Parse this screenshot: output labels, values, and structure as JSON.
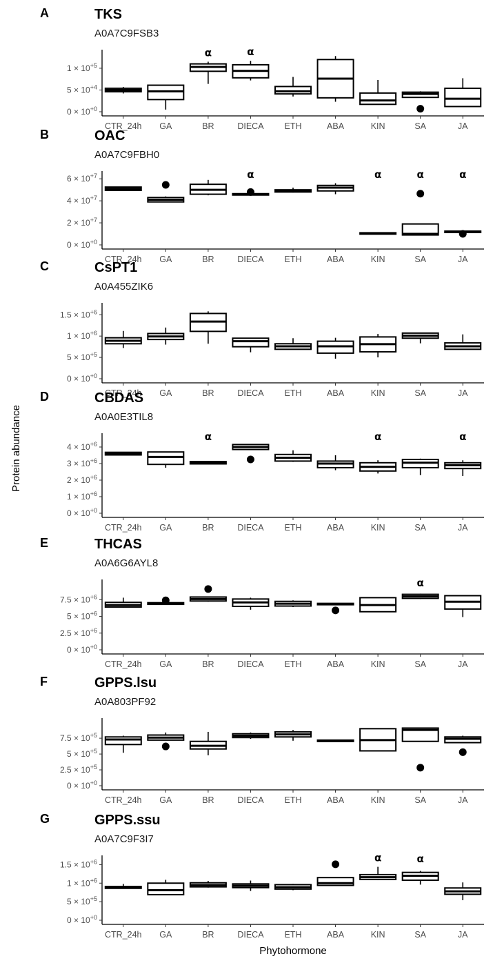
{
  "xlabel": "Phytohormone",
  "ylabel": "Protein abundance",
  "categories": [
    "CTR_24h",
    "GA",
    "BR",
    "DIECA",
    "ETH",
    "ABA",
    "KIN",
    "SA",
    "JA"
  ],
  "chart_data": [
    {
      "type": "boxplot",
      "letter": "A",
      "title": "TKS",
      "subtitle": "A0A7C9FSB3",
      "ylim": [
        0,
        130000
      ],
      "yticks": [
        {
          "v": 0,
          "m": "0",
          "e": "0"
        },
        {
          "v": 50000,
          "m": "5",
          "e": "4"
        },
        {
          "v": 100000,
          "m": "1",
          "e": "5"
        }
      ],
      "boxes": [
        {
          "category": "CTR_24h",
          "wmin": 42000,
          "q1": 46000,
          "median": 50000,
          "q3": 54000,
          "wmax": 57000,
          "outliers": [],
          "sig": ""
        },
        {
          "category": "GA",
          "wmin": 5000,
          "q1": 28000,
          "median": 47000,
          "q3": 61000,
          "wmax": 61000,
          "outliers": [],
          "sig": ""
        },
        {
          "category": "BR",
          "wmin": 64000,
          "q1": 93000,
          "median": 103000,
          "q3": 110000,
          "wmax": 115000,
          "outliers": [],
          "sig": "α"
        },
        {
          "category": "DIECA",
          "wmin": 72000,
          "q1": 78000,
          "median": 94000,
          "q3": 108000,
          "wmax": 117000,
          "outliers": [],
          "sig": "α"
        },
        {
          "category": "ETH",
          "wmin": 35000,
          "q1": 41000,
          "median": 47000,
          "q3": 58000,
          "wmax": 80000,
          "outliers": [],
          "sig": ""
        },
        {
          "category": "ABA",
          "wmin": 23000,
          "q1": 32000,
          "median": 76000,
          "q3": 120000,
          "wmax": 128000,
          "outliers": [],
          "sig": ""
        },
        {
          "category": "KIN",
          "wmin": 17000,
          "q1": 17000,
          "median": 26000,
          "q3": 43000,
          "wmax": 73000,
          "outliers": [],
          "sig": ""
        },
        {
          "category": "SA",
          "wmin": 33000,
          "q1": 33000,
          "median": 41000,
          "q3": 45000,
          "wmax": 47000,
          "outliers": [
            7000
          ],
          "sig": ""
        },
        {
          "category": "JA",
          "wmin": 12000,
          "q1": 12000,
          "median": 30000,
          "q3": 54000,
          "wmax": 77000,
          "outliers": [],
          "sig": ""
        }
      ]
    },
    {
      "type": "boxplot",
      "letter": "B",
      "title": "OAC",
      "subtitle": "A0A7C9FBH0",
      "ylim": [
        0,
        62000000
      ],
      "yticks": [
        {
          "v": 0,
          "m": "0",
          "e": "0"
        },
        {
          "v": 20000000,
          "m": "2",
          "e": "7"
        },
        {
          "v": 40000000,
          "m": "4",
          "e": "7"
        },
        {
          "v": 60000000,
          "m": "6",
          "e": "7"
        }
      ],
      "boxes": [
        {
          "category": "CTR_24h",
          "wmin": 49500000,
          "q1": 49500000,
          "median": 51000000,
          "q3": 52500000,
          "wmax": 52500000,
          "outliers": [],
          "sig": ""
        },
        {
          "category": "GA",
          "wmin": 39000000,
          "q1": 39000000,
          "median": 41000000,
          "q3": 43000000,
          "wmax": 44000000,
          "outliers": [
            54500000
          ],
          "sig": ""
        },
        {
          "category": "BR",
          "wmin": 45000000,
          "q1": 46000000,
          "median": 50000000,
          "q3": 55000000,
          "wmax": 59000000,
          "outliers": [],
          "sig": ""
        },
        {
          "category": "DIECA",
          "wmin": 45500000,
          "q1": 45500000,
          "median": 46000000,
          "q3": 46500000,
          "wmax": 46500000,
          "outliers": [
            48000000
          ],
          "sig": "α"
        },
        {
          "category": "ETH",
          "wmin": 47500000,
          "q1": 48000000,
          "median": 49000000,
          "q3": 50000000,
          "wmax": 52000000,
          "outliers": [],
          "sig": ""
        },
        {
          "category": "ABA",
          "wmin": 46000000,
          "q1": 49000000,
          "median": 52000000,
          "q3": 54000000,
          "wmax": 56000000,
          "outliers": [],
          "sig": ""
        },
        {
          "category": "KIN",
          "wmin": 10000000,
          "q1": 10000000,
          "median": 10500000,
          "q3": 11000000,
          "wmax": 11000000,
          "outliers": [],
          "sig": "α"
        },
        {
          "category": "SA",
          "wmin": 9000000,
          "q1": 9000000,
          "median": 10000000,
          "q3": 19000000,
          "wmax": 19000000,
          "outliers": [
            46500000
          ],
          "sig": "α"
        },
        {
          "category": "JA",
          "wmin": 11000000,
          "q1": 11500000,
          "median": 12000000,
          "q3": 12500000,
          "wmax": 12500000,
          "outliers": [
            10000000
          ],
          "sig": "α"
        }
      ]
    },
    {
      "type": "boxplot",
      "letter": "C",
      "title": "CsPT1",
      "subtitle": "A0A455ZIK6",
      "ylim": [
        0,
        1650000
      ],
      "yticks": [
        {
          "v": 0,
          "m": "0",
          "e": "0"
        },
        {
          "v": 500000,
          "m": "5",
          "e": "5"
        },
        {
          "v": 1000000,
          "m": "1",
          "e": "6"
        },
        {
          "v": 1500000,
          "m": "1.5",
          "e": "6"
        }
      ],
      "boxes": [
        {
          "category": "CTR_24h",
          "wmin": 720000,
          "q1": 820000,
          "median": 890000,
          "q3": 960000,
          "wmax": 1120000,
          "outliers": [],
          "sig": ""
        },
        {
          "category": "GA",
          "wmin": 800000,
          "q1": 920000,
          "median": 990000,
          "q3": 1060000,
          "wmax": 1200000,
          "outliers": [],
          "sig": ""
        },
        {
          "category": "BR",
          "wmin": 820000,
          "q1": 1110000,
          "median": 1340000,
          "q3": 1530000,
          "wmax": 1580000,
          "outliers": [],
          "sig": ""
        },
        {
          "category": "DIECA",
          "wmin": 620000,
          "q1": 750000,
          "median": 880000,
          "q3": 950000,
          "wmax": 950000,
          "outliers": [],
          "sig": ""
        },
        {
          "category": "ETH",
          "wmin": 680000,
          "q1": 690000,
          "median": 760000,
          "q3": 820000,
          "wmax": 950000,
          "outliers": [],
          "sig": ""
        },
        {
          "category": "ABA",
          "wmin": 470000,
          "q1": 600000,
          "median": 760000,
          "q3": 880000,
          "wmax": 960000,
          "outliers": [],
          "sig": ""
        },
        {
          "category": "KIN",
          "wmin": 500000,
          "q1": 630000,
          "median": 810000,
          "q3": 980000,
          "wmax": 1050000,
          "outliers": [],
          "sig": ""
        },
        {
          "category": "SA",
          "wmin": 830000,
          "q1": 950000,
          "median": 1010000,
          "q3": 1070000,
          "wmax": 1070000,
          "outliers": [],
          "sig": ""
        },
        {
          "category": "JA",
          "wmin": 680000,
          "q1": 690000,
          "median": 760000,
          "q3": 840000,
          "wmax": 1040000,
          "outliers": [],
          "sig": ""
        }
      ]
    },
    {
      "type": "boxplot",
      "letter": "D",
      "title": "CBDAS",
      "subtitle": "A0A0E3TIL8",
      "ylim": [
        0,
        4500000
      ],
      "yticks": [
        {
          "v": 0,
          "m": "0",
          "e": "0"
        },
        {
          "v": 1000000,
          "m": "1",
          "e": "6"
        },
        {
          "v": 2000000,
          "m": "2",
          "e": "6"
        },
        {
          "v": 3000000,
          "m": "3",
          "e": "6"
        },
        {
          "v": 4000000,
          "m": "4",
          "e": "6"
        }
      ],
      "boxes": [
        {
          "category": "CTR_24h",
          "wmin": 3500000,
          "q1": 3520000,
          "median": 3600000,
          "q3": 3680000,
          "wmax": 3700000,
          "outliers": [],
          "sig": ""
        },
        {
          "category": "GA",
          "wmin": 2750000,
          "q1": 2950000,
          "median": 3400000,
          "q3": 3700000,
          "wmax": 3700000,
          "outliers": [],
          "sig": ""
        },
        {
          "category": "BR",
          "wmin": 2950000,
          "q1": 2980000,
          "median": 3050000,
          "q3": 3120000,
          "wmax": 3150000,
          "outliers": [],
          "sig": "α"
        },
        {
          "category": "DIECA",
          "wmin": 3850000,
          "q1": 3850000,
          "median": 4000000,
          "q3": 4150000,
          "wmax": 4150000,
          "outliers": [
            3250000
          ],
          "sig": ""
        },
        {
          "category": "ETH",
          "wmin": 3100000,
          "q1": 3150000,
          "median": 3350000,
          "q3": 3550000,
          "wmax": 3800000,
          "outliers": [],
          "sig": ""
        },
        {
          "category": "ABA",
          "wmin": 2600000,
          "q1": 2750000,
          "median": 3000000,
          "q3": 3150000,
          "wmax": 3500000,
          "outliers": [],
          "sig": ""
        },
        {
          "category": "KIN",
          "wmin": 2400000,
          "q1": 2550000,
          "median": 2800000,
          "q3": 3050000,
          "wmax": 3200000,
          "outliers": [],
          "sig": "α"
        },
        {
          "category": "SA",
          "wmin": 2300000,
          "q1": 2750000,
          "median": 3050000,
          "q3": 3250000,
          "wmax": 3300000,
          "outliers": [],
          "sig": ""
        },
        {
          "category": "JA",
          "wmin": 2250000,
          "q1": 2700000,
          "median": 2900000,
          "q3": 3050000,
          "wmax": 3200000,
          "outliers": [],
          "sig": "α"
        }
      ]
    },
    {
      "type": "boxplot",
      "letter": "E",
      "title": "THCAS",
      "subtitle": "A0A6G6AYL8",
      "ylim": [
        0,
        9700000
      ],
      "yticks": [
        {
          "v": 0,
          "m": "0",
          "e": "0"
        },
        {
          "v": 2500000,
          "m": "2.5",
          "e": "6"
        },
        {
          "v": 5000000,
          "m": "5",
          "e": "6"
        },
        {
          "v": 7500000,
          "m": "7.5",
          "e": "6"
        }
      ],
      "boxes": [
        {
          "category": "CTR_24h",
          "wmin": 6300000,
          "q1": 6400000,
          "median": 6700000,
          "q3": 7100000,
          "wmax": 7800000,
          "outliers": [],
          "sig": ""
        },
        {
          "category": "GA",
          "wmin": 6800000,
          "q1": 6800000,
          "median": 6950000,
          "q3": 7050000,
          "wmax": 7050000,
          "outliers": [
            7400000
          ],
          "sig": ""
        },
        {
          "category": "BR",
          "wmin": 7200000,
          "q1": 7300000,
          "median": 7600000,
          "q3": 7900000,
          "wmax": 7900000,
          "outliers": [
            9100000
          ],
          "sig": ""
        },
        {
          "category": "DIECA",
          "wmin": 6000000,
          "q1": 6500000,
          "median": 7100000,
          "q3": 7600000,
          "wmax": 7800000,
          "outliers": [],
          "sig": ""
        },
        {
          "category": "ETH",
          "wmin": 6400000,
          "q1": 6550000,
          "median": 6900000,
          "q3": 7250000,
          "wmax": 7400000,
          "outliers": [],
          "sig": ""
        },
        {
          "category": "ABA",
          "wmin": 6750000,
          "q1": 6800000,
          "median": 6850000,
          "q3": 6950000,
          "wmax": 6950000,
          "outliers": [
            5900000
          ],
          "sig": ""
        },
        {
          "category": "KIN",
          "wmin": 5700000,
          "q1": 5700000,
          "median": 6700000,
          "q3": 7800000,
          "wmax": 7800000,
          "outliers": [],
          "sig": ""
        },
        {
          "category": "SA",
          "wmin": 7600000,
          "q1": 7700000,
          "median": 8000000,
          "q3": 8300000,
          "wmax": 8400000,
          "outliers": [],
          "sig": "α"
        },
        {
          "category": "JA",
          "wmin": 4900000,
          "q1": 6100000,
          "median": 7200000,
          "q3": 8100000,
          "wmax": 8100000,
          "outliers": [],
          "sig": ""
        }
      ]
    },
    {
      "type": "boxplot",
      "letter": "F",
      "title": "GPPS.lsu",
      "subtitle": "A0A803PF92",
      "ylim": [
        0,
        980000
      ],
      "yticks": [
        {
          "v": 0,
          "m": "0",
          "e": "0"
        },
        {
          "v": 250000,
          "m": "2.5",
          "e": "5"
        },
        {
          "v": 500000,
          "m": "5",
          "e": "5"
        },
        {
          "v": 750000,
          "m": "7.5",
          "e": "5"
        }
      ],
      "boxes": [
        {
          "category": "CTR_24h",
          "wmin": 520000,
          "q1": 650000,
          "median": 730000,
          "q3": 770000,
          "wmax": 790000,
          "outliers": [],
          "sig": ""
        },
        {
          "category": "GA",
          "wmin": 720000,
          "q1": 720000,
          "median": 760000,
          "q3": 800000,
          "wmax": 840000,
          "outliers": [
            620000
          ],
          "sig": ""
        },
        {
          "category": "BR",
          "wmin": 480000,
          "q1": 580000,
          "median": 630000,
          "q3": 700000,
          "wmax": 850000,
          "outliers": [],
          "sig": ""
        },
        {
          "category": "DIECA",
          "wmin": 740000,
          "q1": 760000,
          "median": 790000,
          "q3": 820000,
          "wmax": 840000,
          "outliers": [],
          "sig": ""
        },
        {
          "category": "ETH",
          "wmin": 710000,
          "q1": 770000,
          "median": 810000,
          "q3": 850000,
          "wmax": 880000,
          "outliers": [],
          "sig": ""
        },
        {
          "category": "ABA",
          "wmin": 705000,
          "q1": 705000,
          "median": 712000,
          "q3": 720000,
          "wmax": 720000,
          "outliers": [],
          "sig": ""
        },
        {
          "category": "KIN",
          "wmin": 550000,
          "q1": 550000,
          "median": 720000,
          "q3": 900000,
          "wmax": 900000,
          "outliers": [],
          "sig": ""
        },
        {
          "category": "SA",
          "wmin": 700000,
          "q1": 700000,
          "median": 880000,
          "q3": 910000,
          "wmax": 910000,
          "outliers": [
            285000
          ],
          "sig": ""
        },
        {
          "category": "JA",
          "wmin": 680000,
          "q1": 680000,
          "median": 740000,
          "q3": 770000,
          "wmax": 790000,
          "outliers": [
            530000
          ],
          "sig": ""
        }
      ]
    },
    {
      "type": "boxplot",
      "letter": "G",
      "title": "GPPS.ssu",
      "subtitle": "A0A7C9F3I7",
      "ylim": [
        0,
        1600000
      ],
      "yticks": [
        {
          "v": 0,
          "m": "0",
          "e": "0"
        },
        {
          "v": 500000,
          "m": "5",
          "e": "5"
        },
        {
          "v": 1000000,
          "m": "1",
          "e": "6"
        },
        {
          "v": 1500000,
          "m": "1.5",
          "e": "6"
        }
      ],
      "boxes": [
        {
          "category": "CTR_24h",
          "wmin": 860000,
          "q1": 860000,
          "median": 880000,
          "q3": 910000,
          "wmax": 980000,
          "outliers": [],
          "sig": ""
        },
        {
          "category": "GA",
          "wmin": 690000,
          "q1": 690000,
          "median": 810000,
          "q3": 1000000,
          "wmax": 1090000,
          "outliers": [],
          "sig": ""
        },
        {
          "category": "BR",
          "wmin": 880000,
          "q1": 900000,
          "median": 950000,
          "q3": 1010000,
          "wmax": 1060000,
          "outliers": [],
          "sig": ""
        },
        {
          "category": "DIECA",
          "wmin": 790000,
          "q1": 880000,
          "median": 930000,
          "q3": 980000,
          "wmax": 1070000,
          "outliers": [],
          "sig": ""
        },
        {
          "category": "ETH",
          "wmin": 810000,
          "q1": 840000,
          "median": 890000,
          "q3": 960000,
          "wmax": 980000,
          "outliers": [],
          "sig": ""
        },
        {
          "category": "ABA",
          "wmin": 930000,
          "q1": 940000,
          "median": 1000000,
          "q3": 1150000,
          "wmax": 1150000,
          "outliers": [
            1510000
          ],
          "sig": ""
        },
        {
          "category": "KIN",
          "wmin": 1080000,
          "q1": 1100000,
          "median": 1160000,
          "q3": 1230000,
          "wmax": 1440000,
          "outliers": [],
          "sig": "α"
        },
        {
          "category": "SA",
          "wmin": 960000,
          "q1": 1080000,
          "median": 1200000,
          "q3": 1290000,
          "wmax": 1330000,
          "outliers": [],
          "sig": "α"
        },
        {
          "category": "JA",
          "wmin": 540000,
          "q1": 700000,
          "median": 780000,
          "q3": 870000,
          "wmax": 1020000,
          "outliers": [],
          "sig": ""
        }
      ]
    }
  ]
}
